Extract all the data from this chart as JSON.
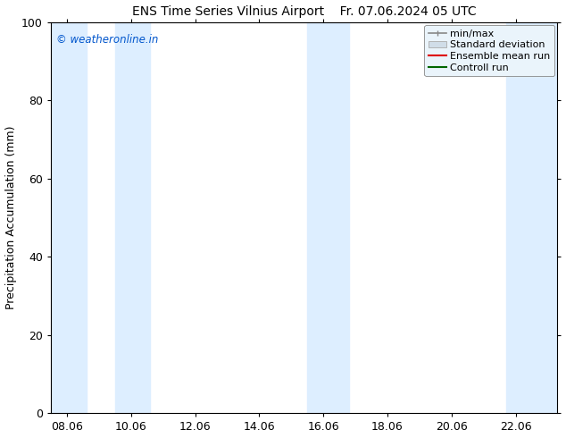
{
  "title_left": "ENS Time Series Vilnius Airport",
  "title_right": "Fr. 07.06.2024 05 UTC",
  "ylabel": "Precipitation Accumulation (mm)",
  "watermark": "© weatheronline.in",
  "watermark_color": "#0055cc",
  "ylim": [
    0,
    100
  ],
  "yticks": [
    0,
    20,
    40,
    60,
    80,
    100
  ],
  "x_labels": [
    "08.06",
    "10.06",
    "12.06",
    "14.06",
    "16.06",
    "18.06",
    "20.06",
    "22.06"
  ],
  "x_tick_positions": [
    0,
    2,
    4,
    6,
    8,
    10,
    12,
    14
  ],
  "x_min": -0.5,
  "x_max": 15.3,
  "shaded_bands": [
    {
      "x_start": -0.5,
      "x_end": 0.6,
      "color": "#ddeeff"
    },
    {
      "x_start": 1.5,
      "x_end": 2.6,
      "color": "#ddeeff"
    },
    {
      "x_start": 7.5,
      "x_end": 8.8,
      "color": "#ddeeff"
    },
    {
      "x_start": 13.7,
      "x_end": 15.3,
      "color": "#ddeeff"
    }
  ],
  "legend_entries": [
    {
      "label": "min/max"
    },
    {
      "label": "Standard deviation"
    },
    {
      "label": "Ensemble mean run"
    },
    {
      "label": "Controll run"
    }
  ],
  "background_color": "#ffffff",
  "plot_bg_color": "#ffffff",
  "title_fontsize": 10,
  "label_fontsize": 9,
  "tick_fontsize": 9,
  "legend_fontsize": 8
}
